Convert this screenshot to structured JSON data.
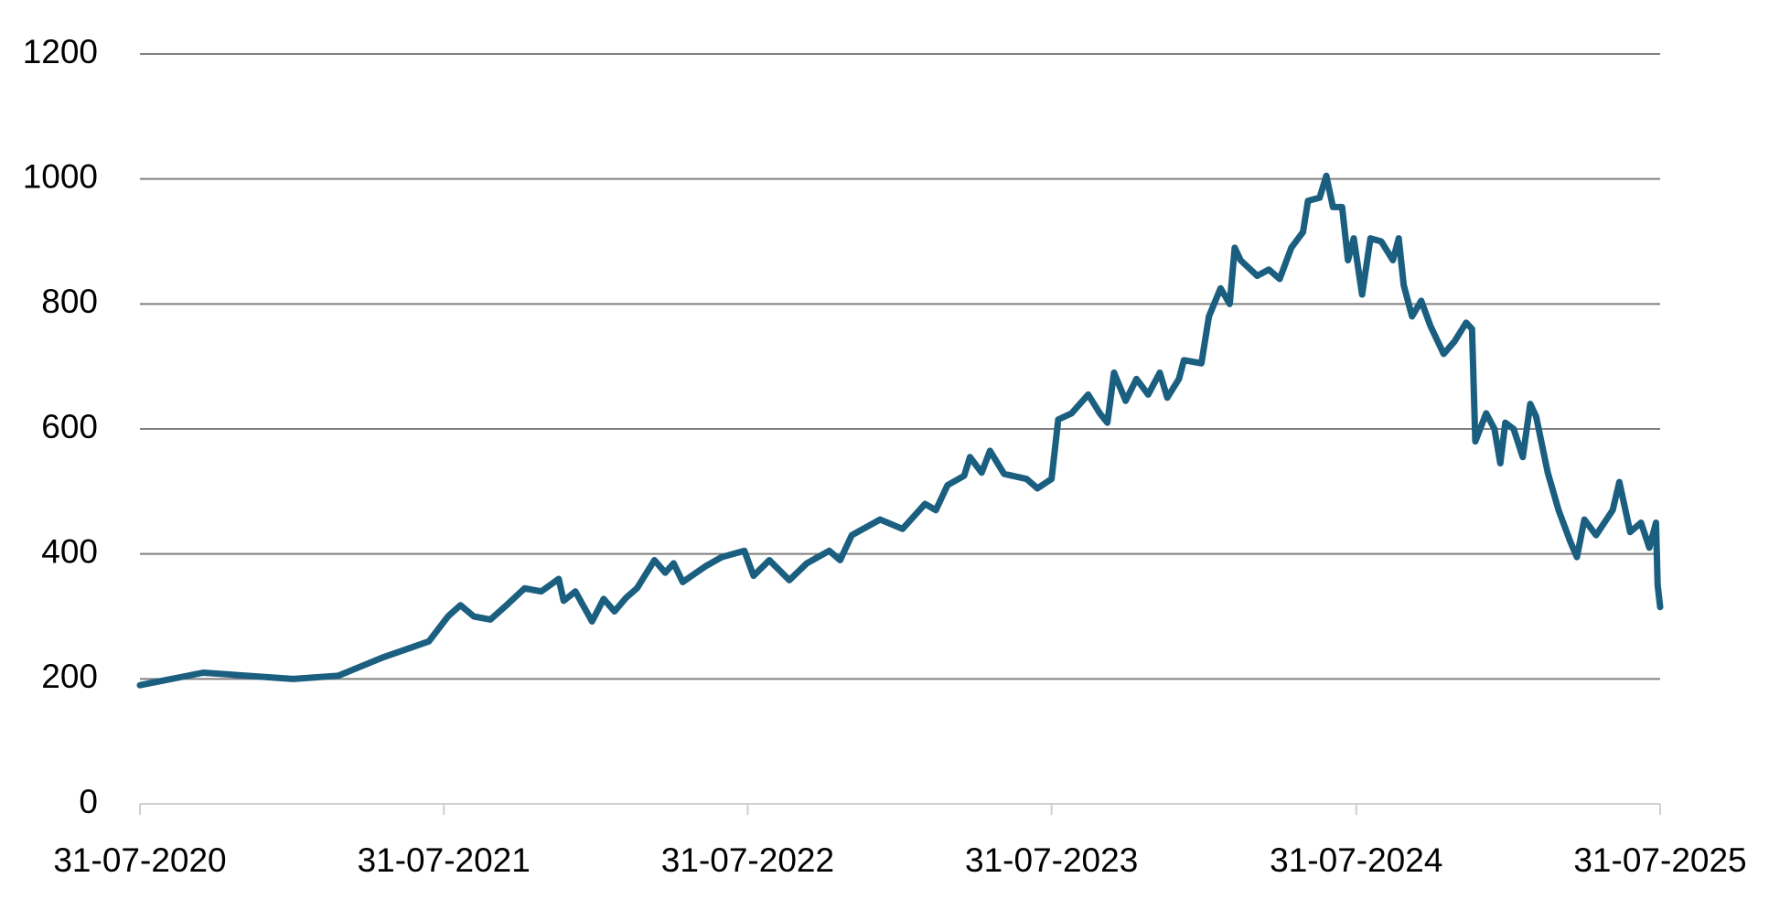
{
  "chart_data": {
    "type": "line",
    "x": [
      "31-07-2020",
      "15-10-2020",
      "31-01-2021",
      "26-03-2021",
      "20-05-2021",
      "13-07-2021",
      "05-08-2021",
      "20-08-2021",
      "05-09-2021",
      "25-09-2021",
      "16-10-2021",
      "05-11-2021",
      "25-11-2021",
      "16-12-2021",
      "22-12-2021",
      "05-01-2022",
      "25-01-2022",
      "08-02-2022",
      "21-02-2022",
      "07-03-2022",
      "20-03-2022",
      "10-04-2022",
      "23-04-2022",
      "03-05-2022",
      "14-05-2022",
      "10-06-2022",
      "30-06-2022",
      "27-07-2022",
      "07-08-2022",
      "26-08-2022",
      "19-09-2022",
      "10-10-2022",
      "06-11-2022",
      "19-11-2022",
      "03-12-2022",
      "06-01-2023",
      "02-02-2023",
      "01-03-2023",
      "14-03-2023",
      "28-03-2023",
      "17-04-2023",
      "24-04-2023",
      "08-05-2023",
      "18-05-2023",
      "04-06-2023",
      "01-07-2023",
      "14-07-2023",
      "31-07-2023",
      "08-08-2023",
      "24-08-2023",
      "13-09-2023",
      "27-09-2023",
      "06-10-2023",
      "14-10-2023",
      "28-10-2023",
      "10-11-2023",
      "24-11-2023",
      "08-12-2023",
      "17-12-2023",
      "31-12-2023",
      "06-01-2024",
      "27-01-2024",
      "05-02-2024",
      "19-02-2024",
      "01-03-2024",
      "07-03-2024",
      "14-03-2024",
      "03-04-2024",
      "17-04-2024",
      "30-04-2024",
      "14-05-2024",
      "28-05-2024",
      "03-06-2024",
      "17-06-2024",
      "25-06-2024",
      "03-07-2024",
      "14-07-2024",
      "21-07-2024",
      "28-07-2024",
      "07-08-2024",
      "17-08-2024",
      "30-08-2024",
      "13-09-2024",
      "20-09-2024",
      "26-09-2024",
      "06-10-2024",
      "17-10-2024",
      "28-10-2024",
      "13-11-2024",
      "26-11-2024",
      "10-12-2024",
      "17-12-2024",
      "21-12-2024",
      "03-01-2025",
      "13-01-2025",
      "20-01-2025",
      "26-01-2025",
      "05-02-2025",
      "16-02-2025",
      "25-02-2025",
      "04-03-2025",
      "18-03-2025",
      "31-03-2025",
      "14-04-2025",
      "22-04-2025",
      "01-05-2025",
      "15-05-2025",
      "04-06-2025",
      "12-06-2025",
      "25-06-2025",
      "08-07-2025",
      "18-07-2025",
      "26-07-2025",
      "28-07-2025",
      "31-07-2025"
    ],
    "series": [
      {
        "color": "#1b5f80",
        "values": [
          190,
          210,
          200,
          205,
          235,
          260,
          300,
          318,
          300,
          295,
          320,
          345,
          340,
          360,
          325,
          340,
          292,
          328,
          308,
          330,
          345,
          390,
          370,
          385,
          355,
          380,
          395,
          405,
          365,
          390,
          358,
          385,
          405,
          390,
          430,
          455,
          440,
          480,
          470,
          510,
          525,
          555,
          530,
          565,
          528,
          520,
          505,
          520,
          615,
          625,
          655,
          625,
          610,
          690,
          645,
          680,
          655,
          690,
          650,
          680,
          710,
          705,
          780,
          825,
          800,
          890,
          870,
          845,
          855,
          840,
          890,
          915,
          965,
          970,
          1005,
          955,
          955,
          870,
          905,
          815,
          905,
          900,
          870,
          905,
          830,
          780,
          805,
          765,
          720,
          740,
          770,
          760,
          580,
          625,
          600,
          545,
          610,
          600,
          555,
          640,
          620,
          530,
          470,
          420,
          395,
          455,
          430,
          470,
          515,
          435,
          450,
          410,
          450,
          350,
          315
        ]
      }
    ],
    "xlim": [
      "31-07-2020",
      "31-07-2025"
    ],
    "xticks": [
      "31-07-2020",
      "31-07-2021",
      "31-07-2022",
      "31-07-2023",
      "31-07-2024",
      "31-07-2025"
    ],
    "ylim": [
      0,
      1200
    ],
    "yticks": [
      0,
      200,
      400,
      600,
      800,
      1000,
      1200
    ],
    "grid": true
  }
}
